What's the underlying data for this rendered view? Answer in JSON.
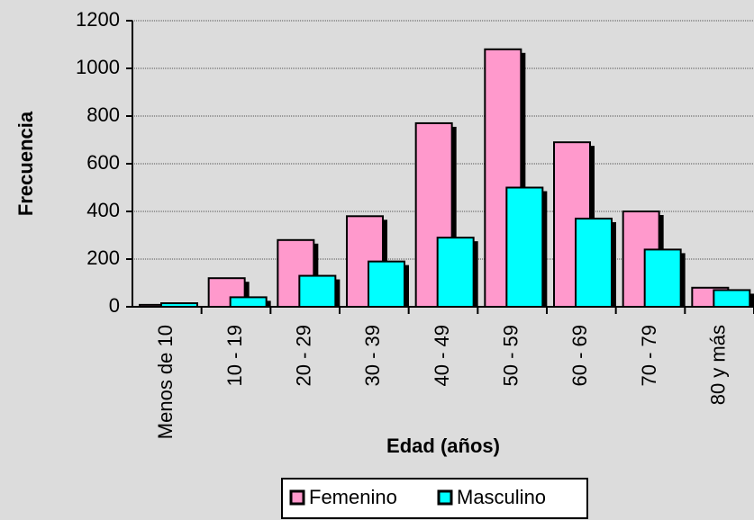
{
  "chart_data": {
    "type": "bar",
    "categories": [
      "Menos de 10",
      "10 - 19",
      "20 - 29",
      "30 - 39",
      "40 - 49",
      "50 - 59",
      "60 - 69",
      "70 - 79",
      "80 y  más"
    ],
    "series": [
      {
        "name": "Femenino",
        "color": "#ff99cc",
        "values": [
          8,
          120,
          280,
          380,
          770,
          1080,
          690,
          400,
          80
        ]
      },
      {
        "name": "Masculino",
        "color": "#00ffff",
        "values": [
          15,
          40,
          130,
          190,
          290,
          500,
          370,
          240,
          70
        ]
      }
    ],
    "x_label": "Edad (años)",
    "y_label": "Frecuencia",
    "ylim": [
      0,
      1200
    ],
    "yticks": [
      0,
      200,
      400,
      600,
      800,
      1000,
      1200
    ],
    "grid": true,
    "legend": "bottom"
  }
}
